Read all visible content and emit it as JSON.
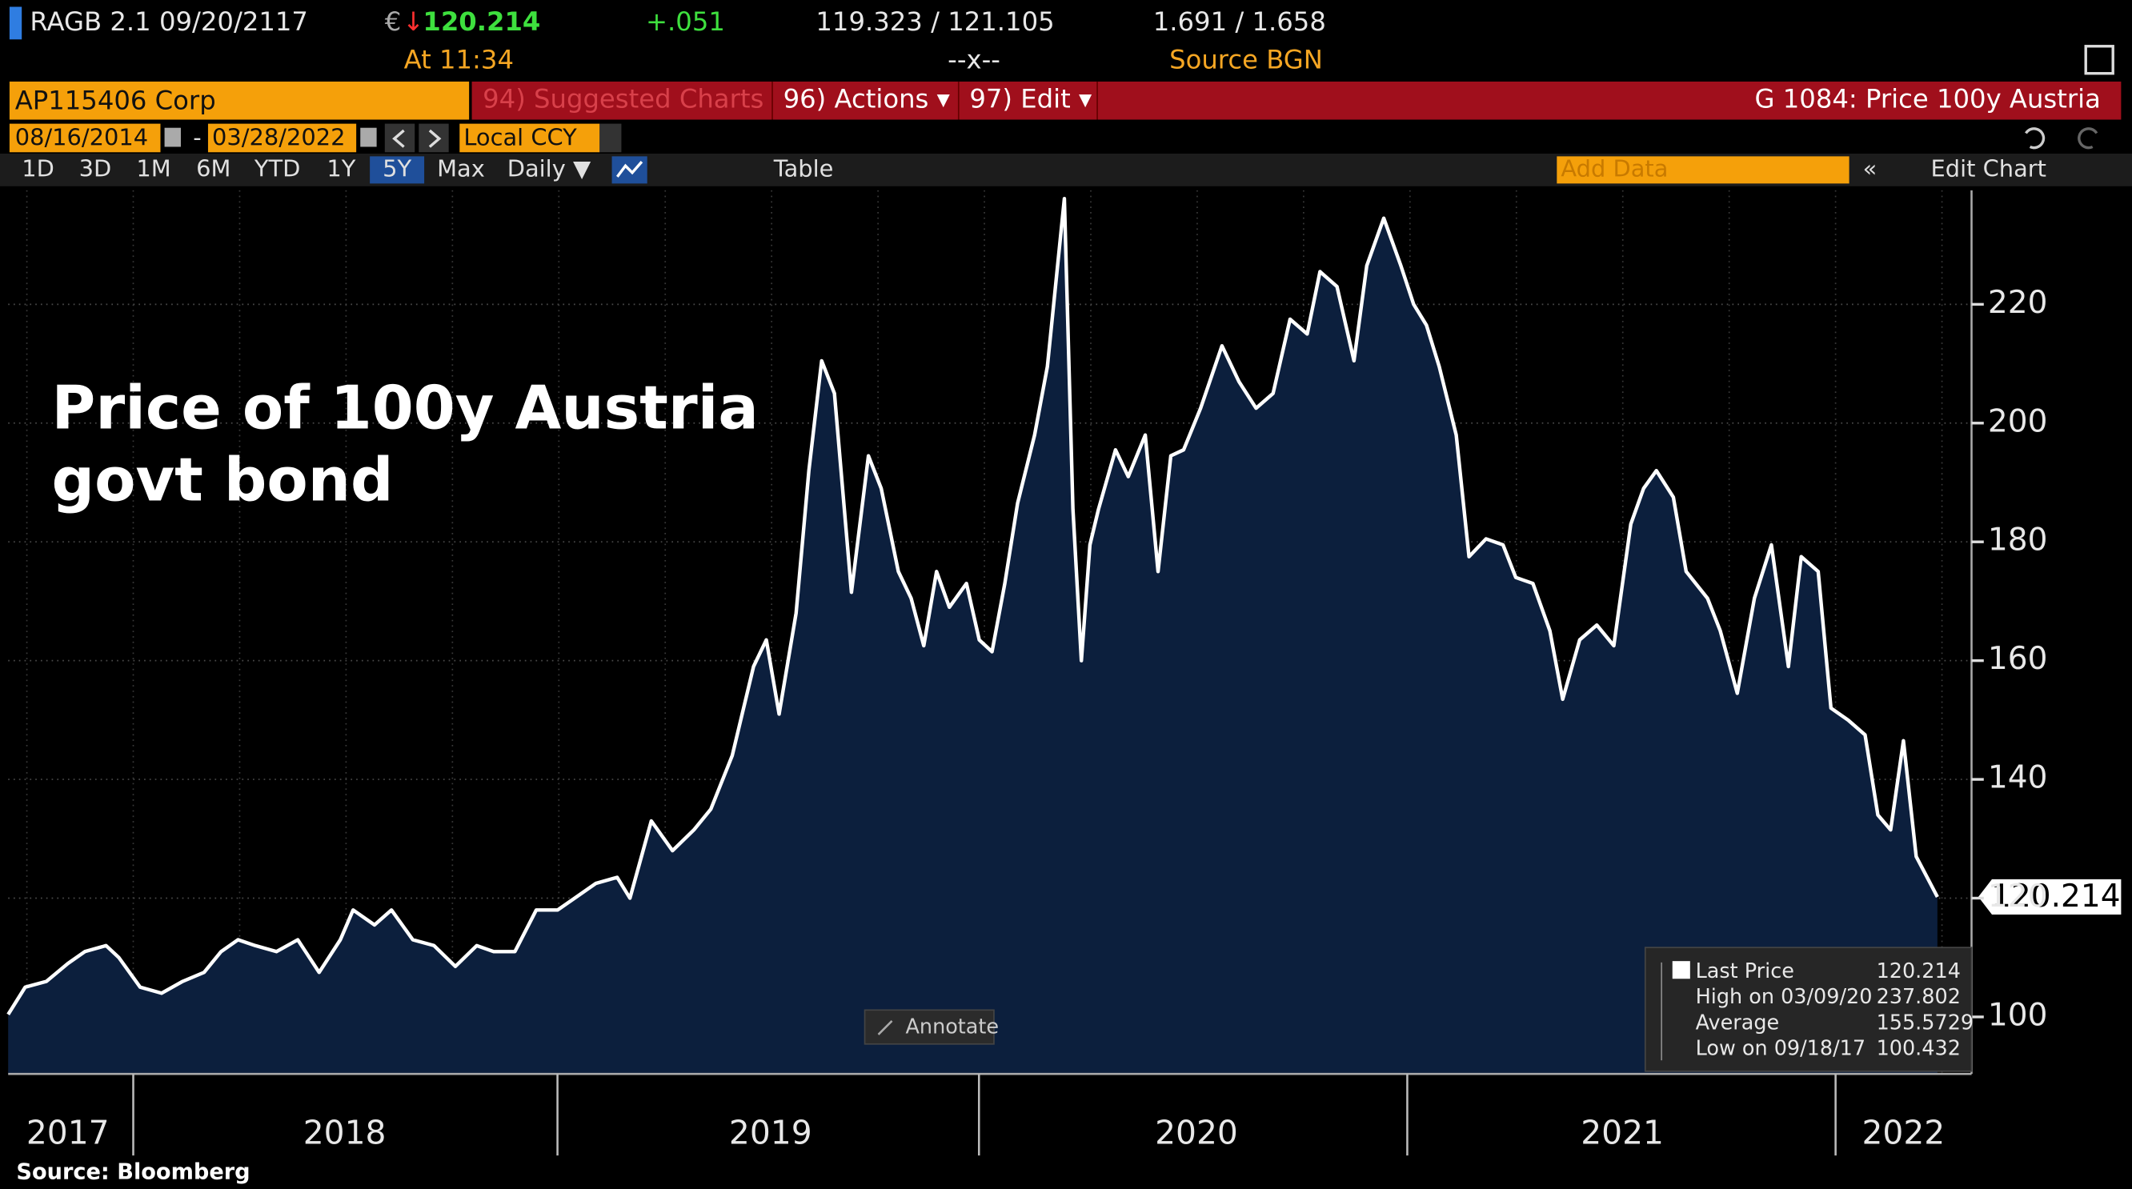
{
  "header": {
    "ticker": "RAGB 2.1 09/20/2117",
    "currency": "€",
    "direction": "↓",
    "price": "120.214",
    "change": "+.051",
    "bid_ask": "119.323 / 121.105",
    "yields": "1.691 / 1.658",
    "time": "At 11:34",
    "volume": "--x--",
    "source": "Source BGN"
  },
  "toolbar": {
    "security": "AP115406 Corp",
    "suggested": "94) Suggested Charts",
    "actions": "96) Actions ▾",
    "edit": "97) Edit ▾",
    "page_title": "G 1084: Price 100y Austria",
    "start_date": "08/16/2014",
    "dash": "-",
    "end_date": "03/28/2022",
    "currency": "Local CCY",
    "periods": [
      "1D",
      "3D",
      "1M",
      "6M",
      "YTD",
      "1Y",
      "5Y",
      "Max"
    ],
    "active_period": "5Y",
    "frequency": "Daily ▼",
    "table": "Table",
    "add_data": "Add Data",
    "edit_chart": "Edit Chart"
  },
  "chart_data": {
    "type": "area",
    "title": [
      "Price of 100y Austria",
      "govt bond"
    ],
    "source": "Source: Bloomberg",
    "annotate": "Annotate",
    "series": [
      {
        "name": "Last Price",
        "color": "#ffffff",
        "fill": "#0c1f3d",
        "x": [
          2017.71,
          2017.75,
          2017.8,
          2017.85,
          2017.89,
          2017.94,
          2017.97,
          2018.02,
          2018.07,
          2018.12,
          2018.17,
          2018.21,
          2018.25,
          2018.29,
          2018.34,
          2018.39,
          2018.44,
          2018.49,
          2018.52,
          2018.57,
          2018.61,
          2018.66,
          2018.71,
          2018.76,
          2018.81,
          2018.85,
          2018.9,
          2018.95,
          2019.0,
          2019.04,
          2019.09,
          2019.14,
          2019.17,
          2019.22,
          2019.27,
          2019.32,
          2019.36,
          2019.41,
          2019.46,
          2019.49,
          2019.52,
          2019.56,
          2019.59,
          2019.62,
          2019.65,
          2019.69,
          2019.73,
          2019.76,
          2019.8,
          2019.83,
          2019.86,
          2019.89,
          2019.92,
          2019.96,
          2019.99,
          2020.02,
          2020.05,
          2020.08,
          2020.12,
          2020.15,
          2020.19,
          2020.21,
          2020.23,
          2020.25,
          2020.27,
          2020.31,
          2020.34,
          2020.38,
          2020.41,
          2020.44,
          2020.47,
          2020.51,
          2020.56,
          2020.6,
          2020.64,
          2020.68,
          2020.72,
          2020.76,
          2020.79,
          2020.83,
          2020.87,
          2020.9,
          2020.94,
          2020.98,
          2021.01,
          2021.04,
          2021.07,
          2021.11,
          2021.14,
          2021.18,
          2021.22,
          2021.25,
          2021.29,
          2021.33,
          2021.36,
          2021.4,
          2021.44,
          2021.48,
          2021.52,
          2021.55,
          2021.58,
          2021.62,
          2021.65,
          2021.7,
          2021.73,
          2021.77,
          2021.81,
          2021.85,
          2021.89,
          2021.92,
          2021.96,
          2021.99,
          2022.03,
          2022.07,
          2022.1,
          2022.13,
          2022.16,
          2022.19,
          2022.24
        ],
        "values": [
          100.432,
          105,
          106,
          109,
          111,
          112,
          110,
          105,
          104,
          106,
          107.5,
          111,
          113,
          112,
          111,
          113,
          107.5,
          113,
          118,
          115.5,
          118,
          113,
          112,
          108.5,
          112,
          111,
          111,
          118,
          118,
          120,
          122.5,
          123.5,
          120,
          133,
          128,
          131.5,
          135,
          144,
          159,
          163.5,
          151,
          168,
          192,
          210.5,
          205,
          171.5,
          194.5,
          189,
          175,
          170.5,
          162.5,
          175,
          169,
          173,
          163.5,
          161.5,
          173,
          186.5,
          198,
          209.5,
          237.802,
          185.5,
          160,
          179.5,
          185.5,
          195.5,
          191,
          198,
          175,
          194.5,
          195.5,
          202.5,
          213,
          207,
          202.5,
          205,
          217.5,
          215,
          225.5,
          223,
          210.5,
          226.5,
          234.5,
          226.5,
          220,
          216.5,
          209.5,
          198,
          177.5,
          180.5,
          179.5,
          174,
          173,
          165,
          153.5,
          163.5,
          166,
          162.5,
          183,
          189,
          192,
          187.5,
          175,
          170.5,
          165,
          154.5,
          170.5,
          179.5,
          159,
          177.5,
          175,
          152,
          150,
          147.5,
          134,
          131.5,
          146.5,
          127,
          120.214
        ]
      }
    ],
    "legend": [
      {
        "label": "Last Price",
        "value": 120.214
      },
      {
        "label": "High on 03/09/20",
        "value": 237.802
      },
      {
        "label": "Average",
        "value": 155.5729
      },
      {
        "label": "Low on 09/18/17",
        "value": 100.432
      }
    ],
    "xlim": [
      2017.71,
      2022.32
    ],
    "xticks": [
      {
        "value": 2017.85,
        "label": "2017"
      },
      {
        "value": 2018.5,
        "label": "2018"
      },
      {
        "value": 2019.5,
        "label": "2019"
      },
      {
        "value": 2020.5,
        "label": "2020"
      },
      {
        "value": 2021.5,
        "label": "2021"
      },
      {
        "value": 2022.16,
        "label": "2022"
      }
    ],
    "ylim": [
      90.4,
      239.2
    ],
    "yticks": [
      100,
      120,
      140,
      160,
      180,
      200,
      220
    ],
    "grid": true
  }
}
